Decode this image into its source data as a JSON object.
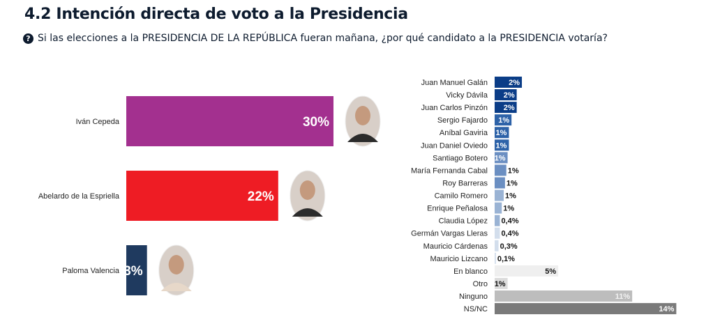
{
  "header": {
    "title": "4.2 Intención directa de voto a la Presidencia",
    "question_icon": "question-circle-icon",
    "question": "Si las elecciones a la PRESIDENCIA DE LA REPÚBLICA fueran mañana, ¿por qué candidato a la PRESIDENCIA votaría?"
  },
  "chart_data": [
    {
      "type": "bar",
      "orientation": "horizontal",
      "categories": [
        "Iván Cepeda",
        "Abelardo de la Espriella",
        "Paloma Valencia"
      ],
      "values": [
        30,
        22,
        3
      ],
      "labels": [
        "30%",
        "22%",
        "3%"
      ],
      "colors": [
        "#a3308f",
        "#ee1c24",
        "#1f3a5f"
      ],
      "images": [
        "candidate-photo",
        "candidate-photo",
        "candidate-photo"
      ],
      "unit": "%",
      "grid": false
    },
    {
      "type": "bar",
      "orientation": "horizontal",
      "categories": [
        "Juan Manuel Galán",
        "Vicky Dávila",
        "Juan Carlos Pinzón",
        "Sergio Fajardo",
        "Aníbal Gaviria",
        "Juan Daniel Oviedo",
        "Santiago Botero",
        "María Fernanda Cabal",
        "Roy Barreras",
        "Camilo Romero",
        "Enrique Peñalosa",
        "Claudia López",
        "Germán Vargas Lleras",
        "Mauricio Cárdenas",
        "Mauricio Lizcano",
        "En blanco",
        "Otro",
        "Ninguno",
        "NS/NC"
      ],
      "values": [
        2.1,
        1.7,
        1.7,
        1.3,
        1.1,
        1.1,
        1.0,
        0.9,
        0.8,
        0.7,
        0.55,
        0.4,
        0.4,
        0.3,
        0.1,
        4.9,
        1.0,
        10.6,
        14
      ],
      "labels": [
        "2%",
        "2%",
        "2%",
        "1%",
        "1%",
        "1%",
        "1%",
        "1%",
        "1%",
        "1%",
        "1%",
        "0,4%",
        "0,4%",
        "0,3%",
        "0,1%",
        "5%",
        "1%",
        "11%",
        "14%"
      ],
      "label_position": [
        "inside",
        "inside",
        "inside",
        "inside",
        "inside",
        "inside",
        "inside",
        "outside",
        "outside",
        "outside",
        "outside",
        "outside",
        "outside",
        "outside",
        "outside",
        "inside",
        "inside",
        "inside",
        "inside"
      ],
      "colors": [
        "#0b3d87",
        "#0b3d87",
        "#0b3d87",
        "#2d62a8",
        "#2d62a8",
        "#2d62a8",
        "#6b8fc2",
        "#6b8fc2",
        "#6b8fc2",
        "#9ab3d4",
        "#9ab3d4",
        "#9ab3d4",
        "#d3deec",
        "#d3deec",
        "#d3deec",
        "#efefef",
        "#dcdcdc",
        "#bdbdbd",
        "#7a7a7a"
      ],
      "label_colors": [
        "#ffffff",
        "#ffffff",
        "#ffffff",
        "#ffffff",
        "#ffffff",
        "#ffffff",
        "#ffffff",
        "#111111",
        "#111111",
        "#111111",
        "#111111",
        "#111111",
        "#111111",
        "#111111",
        "#111111",
        "#111111",
        "#111111",
        "#f2f2f2",
        "#ffffff"
      ],
      "unit": "%",
      "grid": false
    }
  ]
}
